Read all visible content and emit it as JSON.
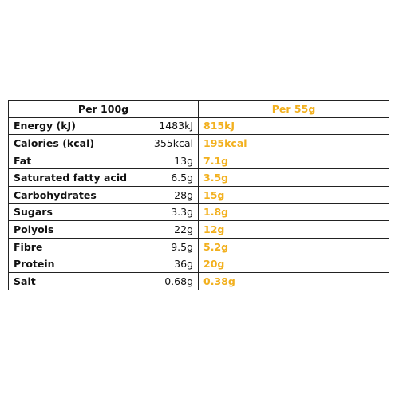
{
  "header": {
    "per100_label": "Per 100g",
    "per55_label": "Per 55g"
  },
  "colors": {
    "accent": "#f2b01e",
    "text": "#111111",
    "border": "#222222"
  },
  "rows": [
    {
      "name": "Energy (kJ)",
      "per100": "1483kJ",
      "per55": "815kJ"
    },
    {
      "name": "Calories (kcal)",
      "per100": "355kcal",
      "per55": "195kcal"
    },
    {
      "name": "Fat",
      "per100": "13g",
      "per55": "7.1g"
    },
    {
      "name": "Saturated fatty acid",
      "per100": "6.5g",
      "per55": "3.5g"
    },
    {
      "name": "Carbohydrates",
      "per100": "28g",
      "per55": "15g"
    },
    {
      "name": "Sugars",
      "per100": "3.3g",
      "per55": "1.8g"
    },
    {
      "name": "Polyols",
      "per100": "22g",
      "per55": "12g"
    },
    {
      "name": "Fibre",
      "per100": "9.5g",
      "per55": "5.2g"
    },
    {
      "name": "Protein",
      "per100": "36g",
      "per55": "20g"
    },
    {
      "name": "Salt",
      "per100": "0.68g",
      "per55": "0.38g"
    }
  ]
}
